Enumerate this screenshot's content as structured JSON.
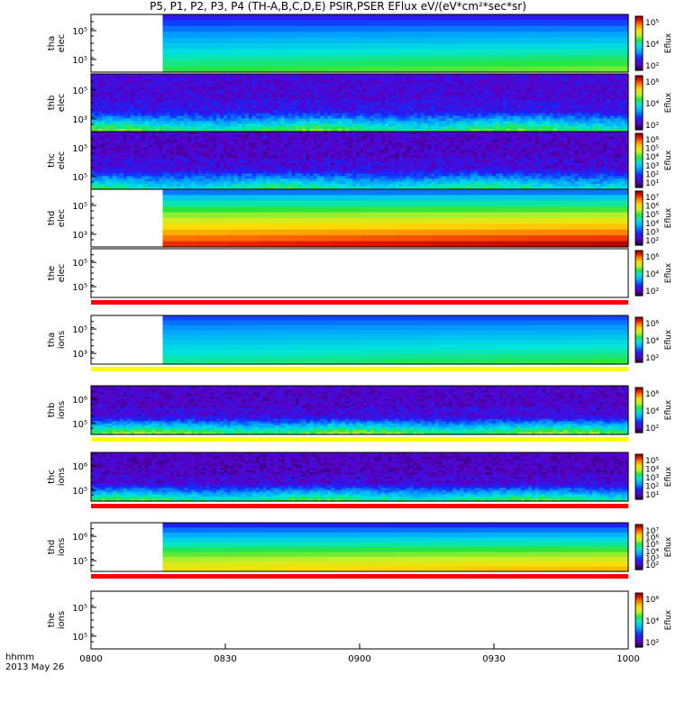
{
  "title": "P5, P1, P2, P3, P4 (TH-A,B,C,D,E) PSIR,PSER EFlux eV/(eV*cm²*sec*sr)",
  "footer": {
    "line1": "hhmm",
    "line2": "2013 May 26"
  },
  "chart_data": {
    "type": "heatmap",
    "x_label": "hhmm",
    "x_ticks": [
      "0800",
      "0830",
      "0900",
      "0930",
      "1000"
    ],
    "x_range": [
      "08:00",
      "10:00"
    ],
    "colorbar_label": "Eflux",
    "panels": [
      {
        "id": "tha-elec",
        "ylabel": [
          "tha",
          "elec"
        ],
        "yticks": [
          "10⁵",
          "10⁵"
        ],
        "data_start": "08:16",
        "pattern": "smooth",
        "low_level": 0.55,
        "high_level": 0.18,
        "cbar_ticks": [
          "10⁵",
          "10⁴",
          "10²"
        ],
        "status_bar": ""
      },
      {
        "id": "thb-elec",
        "ylabel": [
          "thb",
          "elec"
        ],
        "yticks": [
          "10⁵",
          "10³"
        ],
        "data_start": "08:00",
        "pattern": "noisy",
        "low_level": 0.38,
        "high_level": 0.08,
        "cbar_ticks": [
          "10⁶",
          "10⁴",
          "10²"
        ],
        "status_bar": ""
      },
      {
        "id": "thc-elec",
        "ylabel": [
          "thc",
          "elec"
        ],
        "yticks": [
          "10⁵",
          "10⁵"
        ],
        "data_start": "08:00",
        "pattern": "noisy",
        "low_level": 0.32,
        "high_level": 0.06,
        "cbar_ticks": [
          "10⁶",
          "10⁵",
          "10⁴",
          "10³",
          "10²",
          "10¹"
        ],
        "status_bar": ""
      },
      {
        "id": "thd-elec",
        "ylabel": [
          "thd",
          "elec"
        ],
        "yticks": [
          "10⁵",
          "10³"
        ],
        "data_start": "08:16",
        "pattern": "smooth",
        "low_level": 0.92,
        "high_level": 0.3,
        "cbar_ticks": [
          "10⁷",
          "10⁶",
          "10⁵",
          "10⁴",
          "10³",
          "10²"
        ],
        "status_bar": ""
      },
      {
        "id": "the-elec",
        "ylabel": [
          "the",
          "elec"
        ],
        "yticks": [
          "10⁵",
          "10⁵"
        ],
        "data_start": "",
        "pattern": "empty",
        "low_level": 0,
        "high_level": 0,
        "cbar_ticks": [
          "10⁶",
          "10⁴",
          "10²"
        ],
        "status_bar": "#ff0000"
      },
      {
        "id": "tha-ions",
        "ylabel": [
          "tha",
          "ions"
        ],
        "yticks": [
          "10⁵",
          "10³"
        ],
        "data_start": "08:16",
        "pattern": "smooth",
        "low_level": 0.5,
        "high_level": 0.25,
        "cbar_ticks": [
          "10⁶",
          "10⁴",
          "10²"
        ],
        "status_bar": "#ffff00"
      },
      {
        "id": "thb-ions",
        "ylabel": [
          "thb",
          "ions"
        ],
        "yticks": [
          "10⁶",
          "10⁵"
        ],
        "data_start": "08:00",
        "pattern": "noisy",
        "low_level": 0.42,
        "high_level": 0.06,
        "cbar_ticks": [
          "10⁶",
          "10⁴",
          "10²"
        ],
        "status_bar": "#ffff00"
      },
      {
        "id": "thc-ions",
        "ylabel": [
          "thc",
          "ions"
        ],
        "yticks": [
          "10⁶",
          "10⁵"
        ],
        "data_start": "08:00",
        "pattern": "noisy",
        "low_level": 0.36,
        "high_level": 0.05,
        "cbar_ticks": [
          "10⁵",
          "10⁴",
          "10³",
          "10²",
          "10¹"
        ],
        "status_bar": "#ff0000"
      },
      {
        "id": "thd-ions",
        "ylabel": [
          "thd",
          "ions"
        ],
        "yticks": [
          "10⁶",
          "10⁵"
        ],
        "data_start": "08:16",
        "pattern": "smooth",
        "low_level": 0.74,
        "high_level": 0.2,
        "cbar_ticks": [
          "10⁷",
          "10⁶",
          "10⁵",
          "10⁴",
          "10³",
          "10²"
        ],
        "status_bar": "#ff0000"
      },
      {
        "id": "the-ions",
        "ylabel": [
          "the",
          "ions"
        ],
        "yticks": [
          "10⁵",
          "10⁵"
        ],
        "data_start": "",
        "pattern": "empty",
        "low_level": 0,
        "high_level": 0,
        "cbar_ticks": [
          "10⁶",
          "10⁴",
          "10²"
        ],
        "status_bar": ""
      }
    ]
  }
}
